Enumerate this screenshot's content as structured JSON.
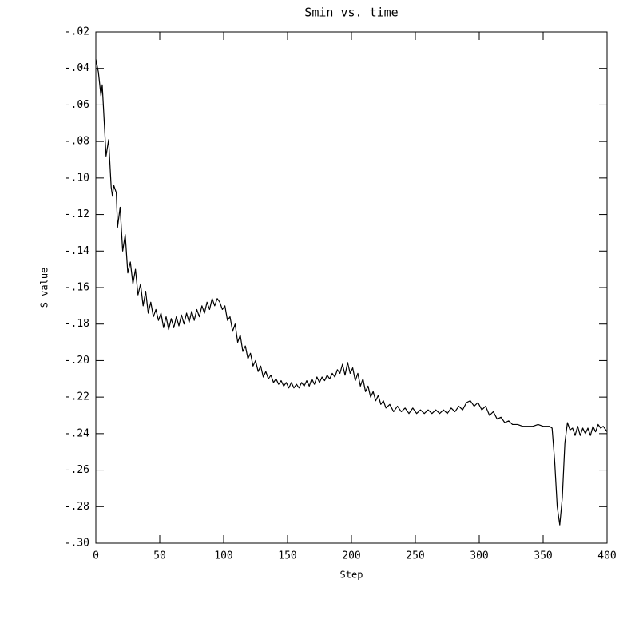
{
  "chart_data": {
    "type": "line",
    "title": "Smin vs. time",
    "xlabel": "Step",
    "ylabel": "S value",
    "color": "#000000",
    "x": [
      0,
      2,
      4,
      5,
      7,
      8,
      10,
      12,
      13,
      14,
      16,
      17,
      19,
      21,
      23,
      25,
      27,
      29,
      31,
      33,
      35,
      37,
      39,
      41,
      43,
      45,
      47,
      49,
      51,
      53,
      55,
      57,
      59,
      61,
      63,
      65,
      67,
      69,
      71,
      73,
      75,
      77,
      79,
      81,
      83,
      85,
      87,
      89,
      91,
      93,
      95,
      97,
      99,
      101,
      103,
      105,
      107,
      109,
      111,
      113,
      115,
      117,
      119,
      121,
      123,
      125,
      127,
      129,
      131,
      133,
      135,
      137,
      139,
      141,
      143,
      145,
      147,
      149,
      151,
      153,
      155,
      157,
      159,
      161,
      163,
      165,
      167,
      169,
      171,
      173,
      175,
      177,
      179,
      181,
      183,
      185,
      187,
      189,
      191,
      193,
      195,
      197,
      199,
      201,
      203,
      205,
      207,
      209,
      211,
      213,
      215,
      217,
      219,
      221,
      223,
      225,
      227,
      230,
      233,
      236,
      239,
      242,
      245,
      248,
      251,
      254,
      257,
      260,
      263,
      266,
      269,
      272,
      275,
      278,
      281,
      284,
      287,
      290,
      293,
      296,
      299,
      302,
      305,
      308,
      311,
      314,
      317,
      320,
      323,
      326,
      330,
      334,
      338,
      342,
      346,
      350,
      355,
      357,
      359,
      361,
      363,
      365,
      367,
      369,
      371,
      373,
      375,
      377,
      379,
      381,
      383,
      385,
      387,
      389,
      391,
      393,
      395,
      397,
      400
    ],
    "values": [
      -0.035,
      -0.042,
      -0.055,
      -0.049,
      -0.075,
      -0.088,
      -0.079,
      -0.105,
      -0.11,
      -0.104,
      -0.108,
      -0.127,
      -0.116,
      -0.14,
      -0.131,
      -0.152,
      -0.146,
      -0.158,
      -0.15,
      -0.164,
      -0.158,
      -0.17,
      -0.162,
      -0.174,
      -0.168,
      -0.176,
      -0.172,
      -0.178,
      -0.174,
      -0.182,
      -0.176,
      -0.183,
      -0.177,
      -0.182,
      -0.176,
      -0.181,
      -0.175,
      -0.18,
      -0.174,
      -0.179,
      -0.173,
      -0.178,
      -0.172,
      -0.176,
      -0.17,
      -0.174,
      -0.168,
      -0.172,
      -0.166,
      -0.17,
      -0.166,
      -0.168,
      -0.172,
      -0.17,
      -0.178,
      -0.176,
      -0.184,
      -0.18,
      -0.19,
      -0.186,
      -0.195,
      -0.192,
      -0.199,
      -0.196,
      -0.203,
      -0.2,
      -0.206,
      -0.203,
      -0.209,
      -0.206,
      -0.21,
      -0.208,
      -0.212,
      -0.21,
      -0.213,
      -0.211,
      -0.214,
      -0.212,
      -0.215,
      -0.212,
      -0.215,
      -0.213,
      -0.215,
      -0.212,
      -0.214,
      -0.211,
      -0.214,
      -0.21,
      -0.213,
      -0.209,
      -0.212,
      -0.209,
      -0.211,
      -0.208,
      -0.21,
      -0.207,
      -0.209,
      -0.205,
      -0.207,
      -0.202,
      -0.208,
      -0.201,
      -0.207,
      -0.204,
      -0.211,
      -0.207,
      -0.214,
      -0.21,
      -0.217,
      -0.214,
      -0.22,
      -0.217,
      -0.222,
      -0.219,
      -0.224,
      -0.222,
      -0.226,
      -0.224,
      -0.228,
      -0.225,
      -0.228,
      -0.226,
      -0.229,
      -0.226,
      -0.229,
      -0.227,
      -0.229,
      -0.227,
      -0.229,
      -0.227,
      -0.229,
      -0.227,
      -0.229,
      -0.226,
      -0.228,
      -0.225,
      -0.227,
      -0.223,
      -0.222,
      -0.225,
      -0.223,
      -0.227,
      -0.225,
      -0.23,
      -0.228,
      -0.232,
      -0.231,
      -0.234,
      -0.233,
      -0.235,
      -0.235,
      -0.236,
      -0.236,
      -0.236,
      -0.235,
      -0.236,
      -0.236,
      -0.237,
      -0.255,
      -0.28,
      -0.29,
      -0.275,
      -0.245,
      -0.234,
      -0.238,
      -0.237,
      -0.241,
      -0.236,
      -0.241,
      -0.237,
      -0.24,
      -0.237,
      -0.241,
      -0.236,
      -0.239,
      -0.235,
      -0.237,
      -0.236,
      -0.239
    ],
    "xlim": [
      0,
      400
    ],
    "xticks": [
      0,
      50,
      100,
      150,
      200,
      250,
      300,
      350,
      400
    ],
    "ylim": [
      -0.3,
      -0.02
    ],
    "yticks": [
      {
        "value": -0.02,
        "label": "-.02"
      },
      {
        "value": -0.04,
        "label": "-.04"
      },
      {
        "value": -0.06,
        "label": "-.06"
      },
      {
        "value": -0.08,
        "label": "-.08"
      },
      {
        "value": -0.1,
        "label": "-.10"
      },
      {
        "value": -0.12,
        "label": "-.12"
      },
      {
        "value": -0.14,
        "label": "-.14"
      },
      {
        "value": -0.16,
        "label": "-.16"
      },
      {
        "value": -0.18,
        "label": "-.18"
      },
      {
        "value": -0.2,
        "label": "-.20"
      },
      {
        "value": -0.22,
        "label": "-.22"
      },
      {
        "value": -0.24,
        "label": "-.24"
      },
      {
        "value": -0.26,
        "label": "-.26"
      },
      {
        "value": -0.28,
        "label": "-.28"
      },
      {
        "value": -0.3,
        "label": "-.30"
      }
    ],
    "grid": false
  }
}
